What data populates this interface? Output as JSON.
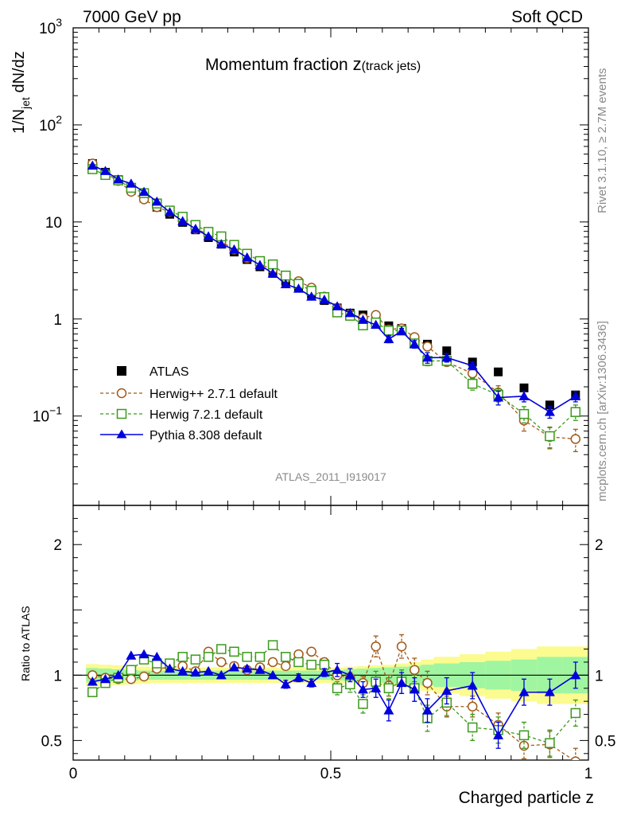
{
  "header": {
    "left": "7000 GeV pp",
    "right": "Soft QCD"
  },
  "side_labels": {
    "rivet": "Rivet 3.1.10, ≥ 2.7M events",
    "mcplots": "mcplots.cern.ch [arXiv:1306.3436]"
  },
  "colors": {
    "atlas": "#000000",
    "herwigpp": "#a05a1a",
    "herwig7": "#3a9a1a",
    "pythia": "#0000dd",
    "band_inner": "#a0f5a0",
    "band_outer": "#fbfb90"
  },
  "chart_data": [
    {
      "type": "scatter",
      "panel": "main",
      "title": "Momentum fraction",
      "title_symbol": "z",
      "title_sub": "(track jets)",
      "ylabel": "1/N_jet dN/dz",
      "ylabel_main": "1/N",
      "ylabel_sub": "jet",
      "ylabel_tail": " dN/dz",
      "yscale": "log",
      "ylim": [
        0.012,
        1000
      ],
      "xlim": [
        0,
        1
      ],
      "y_ticks": [
        {
          "value": 0.1,
          "base": "10",
          "exp": "−1"
        },
        {
          "value": 1,
          "label": "1"
        },
        {
          "value": 10,
          "label": "10"
        },
        {
          "value": 100,
          "base": "10",
          "exp": "2"
        },
        {
          "value": 1000,
          "base": "10",
          "exp": "3"
        }
      ],
      "analysis_label": "ATLAS_2011_I919017",
      "x": [
        0.0375,
        0.0625,
        0.0875,
        0.1125,
        0.1375,
        0.1625,
        0.1875,
        0.2125,
        0.2375,
        0.2625,
        0.2875,
        0.3125,
        0.3375,
        0.3625,
        0.3875,
        0.4125,
        0.4375,
        0.4625,
        0.4875,
        0.5125,
        0.5375,
        0.5625,
        0.5875,
        0.6125,
        0.6375,
        0.6625,
        0.6875,
        0.725,
        0.775,
        0.825,
        0.875,
        0.925,
        0.975
      ],
      "series": [
        {
          "name": "ATLAS",
          "style": "data",
          "values": [
            40,
            32.5,
            27.3,
            21.5,
            17.6,
            14.2,
            12,
            9.9,
            8.3,
            6.9,
            5.9,
            4.9,
            4.1,
            3.45,
            2.95,
            2.45,
            2.1,
            1.8,
            1.55,
            1.3,
            1.15,
            1.1,
            0.97,
            0.85,
            0.8,
            0.62,
            0.55,
            0.47,
            0.36,
            0.285,
            0.195,
            0.13,
            0.165
          ]
        },
        {
          "name": "Herwig++ 2.7.1 default",
          "style": "open-circle-dashed",
          "values": [
            40,
            31.8,
            26.5,
            20.5,
            17.1,
            14.2,
            12.7,
            10.5,
            8.5,
            7.5,
            6.3,
            5.2,
            4.25,
            3.65,
            3.25,
            2.62,
            2.45,
            2.1,
            1.7,
            1.3,
            1.12,
            1.03,
            1.1,
            0.78,
            0.8,
            0.65,
            0.52,
            0.36,
            0.275,
            0.175,
            0.09,
            0.061,
            0.058
          ],
          "errors": [
            0,
            0,
            0,
            0,
            0,
            0,
            0,
            0,
            0,
            0,
            0,
            0,
            0,
            0,
            0,
            0,
            0,
            0,
            0,
            0,
            0,
            0,
            0,
            0,
            0,
            0,
            0,
            0,
            0.03,
            0.03,
            0.02,
            0.015,
            0.015
          ]
        },
        {
          "name": "Herwig 7.2.1 default",
          "style": "open-square-dashed",
          "values": [
            35,
            30.5,
            26.8,
            22.5,
            19.8,
            15.5,
            13.1,
            11.3,
            9.3,
            7.9,
            7.1,
            5.8,
            4.7,
            3.95,
            3.65,
            2.8,
            2.3,
            1.95,
            1.68,
            1.17,
            1.08,
            0.86,
            0.92,
            0.76,
            0.76,
            0.56,
            0.37,
            0.37,
            0.215,
            0.165,
            0.105,
            0.062,
            0.11
          ],
          "errors": [
            0,
            0,
            0,
            0,
            0,
            0,
            0,
            0,
            0,
            0,
            0,
            0,
            0,
            0,
            0,
            0,
            0,
            0,
            0,
            0,
            0,
            0.05,
            0.05,
            0.05,
            0.05,
            0.05,
            0.04,
            0.04,
            0.03,
            0.025,
            0.02,
            0.015,
            0.02
          ]
        },
        {
          "name": "Pythia 8.308 default",
          "style": "filled-triangle-solid",
          "values": [
            38,
            33.5,
            27.4,
            24.8,
            20.4,
            16.2,
            12.6,
            10.2,
            8.5,
            7.1,
            5.9,
            5.2,
            4.3,
            3.6,
            2.95,
            2.28,
            2.05,
            1.7,
            1.58,
            1.35,
            1.15,
            0.98,
            0.87,
            0.62,
            0.75,
            0.55,
            0.4,
            0.4,
            0.33,
            0.155,
            0.16,
            0.11,
            0.16
          ],
          "errors": [
            0,
            0,
            0,
            0,
            0,
            0,
            0,
            0,
            0,
            0,
            0,
            0,
            0,
            0,
            0,
            0,
            0,
            0,
            0,
            0,
            0,
            0,
            0,
            0.05,
            0.05,
            0.05,
            0.05,
            0.04,
            0.03,
            0.025,
            0.02,
            0.015,
            0.02
          ]
        }
      ]
    },
    {
      "type": "line",
      "panel": "ratio",
      "ylabel": "Ratio to ATLAS",
      "xlabel": "Charged particle z",
      "ylim": [
        0.35,
        2.3
      ],
      "xlim": [
        0,
        1
      ],
      "y_ticks": [
        0.5,
        1,
        2
      ],
      "y_tick_labels": [
        "0.5",
        "1",
        "2"
      ],
      "x_ticks": [
        0,
        0.5,
        1
      ],
      "x_tick_labels": [
        "0",
        "0.5",
        "1"
      ],
      "x_edges": [
        0.025,
        0.05,
        0.075,
        0.1,
        0.125,
        0.15,
        0.175,
        0.2,
        0.225,
        0.25,
        0.275,
        0.3,
        0.325,
        0.35,
        0.375,
        0.4,
        0.425,
        0.45,
        0.475,
        0.5,
        0.525,
        0.55,
        0.575,
        0.6,
        0.625,
        0.65,
        0.675,
        0.7,
        0.75,
        0.8,
        0.85,
        0.9,
        0.95,
        1.0
      ],
      "band_inner": [
        0.055,
        0.05,
        0.045,
        0.04,
        0.035,
        0.035,
        0.035,
        0.035,
        0.035,
        0.035,
        0.035,
        0.035,
        0.035,
        0.035,
        0.035,
        0.035,
        0.035,
        0.035,
        0.035,
        0.04,
        0.045,
        0.05,
        0.055,
        0.06,
        0.065,
        0.07,
        0.08,
        0.09,
        0.1,
        0.11,
        0.12,
        0.14,
        0.14
      ],
      "band_outer": [
        0.085,
        0.08,
        0.075,
        0.07,
        0.065,
        0.06,
        0.06,
        0.06,
        0.06,
        0.06,
        0.06,
        0.06,
        0.06,
        0.06,
        0.06,
        0.06,
        0.06,
        0.06,
        0.06,
        0.06,
        0.065,
        0.07,
        0.075,
        0.08,
        0.09,
        0.1,
        0.12,
        0.14,
        0.16,
        0.18,
        0.2,
        0.22,
        0.22
      ],
      "series": [
        {
          "name": "Herwig++ 2.7.1 default",
          "values": [
            1.0,
            0.98,
            0.97,
            0.97,
            0.99,
            1.05,
            1.06,
            1.07,
            1.03,
            1.18,
            1.1,
            1.07,
            1.04,
            1.06,
            1.1,
            1.07,
            1.16,
            1.18,
            1.1,
            1.0,
            0.98,
            0.94,
            1.22,
            0.92,
            1.22,
            1.04,
            0.94,
            0.76,
            0.76,
            0.62,
            0.46,
            0.47,
            0.34
          ],
          "errors": [
            0,
            0,
            0,
            0,
            0,
            0,
            0,
            0,
            0,
            0,
            0,
            0,
            0,
            0,
            0,
            0,
            0,
            0,
            0,
            0.03,
            0.04,
            0.05,
            0.08,
            0.08,
            0.09,
            0.09,
            0.09,
            0.08,
            0.08,
            0.09,
            0.1,
            0.1,
            0.1
          ]
        },
        {
          "name": "Herwig 7.2.1 default",
          "values": [
            0.87,
            0.94,
            0.98,
            1.04,
            1.12,
            1.09,
            1.09,
            1.14,
            1.12,
            1.14,
            1.2,
            1.18,
            1.14,
            1.14,
            1.23,
            1.14,
            1.1,
            1.08,
            1.08,
            0.9,
            0.93,
            0.78,
            0.95,
            0.9,
            0.95,
            0.9,
            0.67,
            0.79,
            0.6,
            0.58,
            0.54,
            0.48,
            0.71
          ],
          "errors": [
            0,
            0,
            0,
            0,
            0,
            0,
            0,
            0,
            0,
            0,
            0,
            0,
            0,
            0,
            0,
            0,
            0,
            0,
            0,
            0.05,
            0.06,
            0.07,
            0.08,
            0.08,
            0.09,
            0.1,
            0.1,
            0.1,
            0.1,
            0.1,
            0.1,
            0.1,
            0.1
          ]
        },
        {
          "name": "Pythia 8.308 default",
          "values": [
            0.95,
            0.97,
            1.0,
            1.15,
            1.16,
            1.14,
            1.05,
            1.03,
            1.02,
            1.03,
            1.0,
            1.06,
            1.05,
            1.04,
            1.0,
            0.93,
            0.98,
            0.94,
            1.02,
            1.04,
            1.0,
            0.89,
            0.9,
            0.73,
            0.94,
            0.89,
            0.73,
            0.88,
            0.92,
            0.54,
            0.87,
            0.87,
            1.0
          ],
          "errors": [
            0,
            0,
            0,
            0,
            0,
            0,
            0,
            0,
            0,
            0,
            0,
            0,
            0,
            0,
            0,
            0.03,
            0.03,
            0.03,
            0.03,
            0.05,
            0.05,
            0.06,
            0.07,
            0.08,
            0.08,
            0.09,
            0.09,
            0.1,
            0.1,
            0.1,
            0.1,
            0.1,
            0.1
          ]
        }
      ]
    }
  ]
}
